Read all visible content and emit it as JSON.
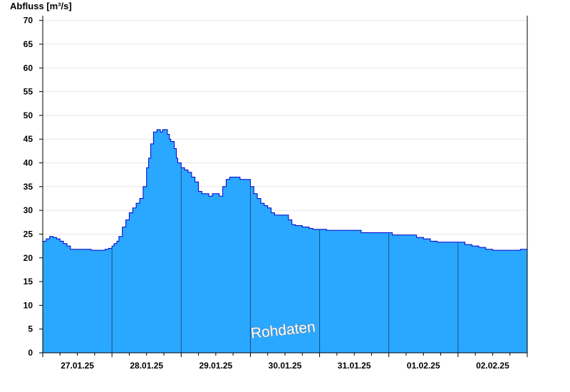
{
  "colors": {
    "fill": "#2aa7ff",
    "line": "#0000cc",
    "divider": "#1a4f80",
    "grid": "#e6e6e6",
    "axis": "#000000"
  },
  "chart_data": {
    "type": "area",
    "ylabel": "Abfluss [m³/s]",
    "ylim": [
      0,
      71
    ],
    "yticks": [
      0,
      5,
      10,
      15,
      20,
      25,
      30,
      35,
      40,
      45,
      50,
      55,
      60,
      65,
      70
    ],
    "xlim": [
      0,
      7
    ],
    "day_ticks": [
      "27.01.25",
      "28.01.25",
      "29.01.25",
      "30.01.25",
      "31.01.25",
      "01.02.25",
      "02.02.25"
    ],
    "grid": true,
    "legend": "none",
    "watermark": "Rohdaten",
    "series": [
      {
        "x": [
          0,
          0.05,
          0.1,
          0.15,
          0.2,
          0.25,
          0.3,
          0.35,
          0.4,
          0.5,
          0.6,
          0.7,
          0.75,
          0.8,
          0.9,
          0.95,
          1.0,
          1.03,
          1.07,
          1.1,
          1.15,
          1.2,
          1.25,
          1.3,
          1.35,
          1.4,
          1.45,
          1.5,
          1.53,
          1.56,
          1.6,
          1.65,
          1.7,
          1.73,
          1.75,
          1.8,
          1.83,
          1.85,
          1.9,
          1.93,
          1.95,
          2.0,
          2.05,
          2.1,
          2.15,
          2.2,
          2.25,
          2.3,
          2.35,
          2.4,
          2.45,
          2.5,
          2.55,
          2.6,
          2.65,
          2.7,
          2.75,
          2.8,
          2.85,
          2.9,
          2.95,
          3.0,
          3.05,
          3.1,
          3.15,
          3.2,
          3.25,
          3.3,
          3.35,
          3.4,
          3.45,
          3.5,
          3.55,
          3.6,
          3.65,
          3.7,
          3.75,
          3.8,
          3.85,
          3.9,
          3.95,
          4.0,
          4.1,
          4.2,
          4.3,
          4.35,
          4.5,
          4.6,
          4.8,
          5.0,
          5.05,
          5.1,
          5.3,
          5.4,
          5.5,
          5.6,
          5.7,
          5.8,
          5.9,
          6.0,
          6.1,
          6.2,
          6.3,
          6.4,
          6.5,
          6.6,
          6.8,
          6.9,
          7.0
        ],
        "y": [
          23.5,
          24,
          24.5,
          24.3,
          24,
          23.5,
          23,
          22.5,
          21.8,
          21.8,
          21.8,
          21.6,
          21.6,
          21.6,
          21.8,
          22,
          22.5,
          23,
          23.5,
          24.5,
          26.5,
          28,
          29.5,
          30.5,
          31.5,
          32.5,
          35,
          39,
          41,
          44,
          46.5,
          47,
          46.5,
          47,
          47,
          46,
          45,
          44.5,
          43,
          41,
          40,
          39,
          38.5,
          38,
          37,
          36,
          34,
          33.5,
          33.5,
          33,
          33.5,
          33.5,
          33,
          35,
          36.5,
          37,
          37,
          37,
          36.5,
          36.5,
          36.5,
          35,
          33.5,
          32.5,
          31.5,
          31,
          30.5,
          29.5,
          29,
          29,
          29,
          29,
          28,
          27,
          26.8,
          26.8,
          26.5,
          26.5,
          26.2,
          26,
          26,
          26,
          25.8,
          25.8,
          25.8,
          25.8,
          25.8,
          25.3,
          25.3,
          25.3,
          24.8,
          24.8,
          24.8,
          24.3,
          24,
          23.5,
          23.3,
          23.3,
          23.3,
          23.3,
          22.8,
          22.5,
          22.2,
          21.8,
          21.6,
          21.6,
          21.6,
          21.8,
          22
        ]
      }
    ]
  }
}
